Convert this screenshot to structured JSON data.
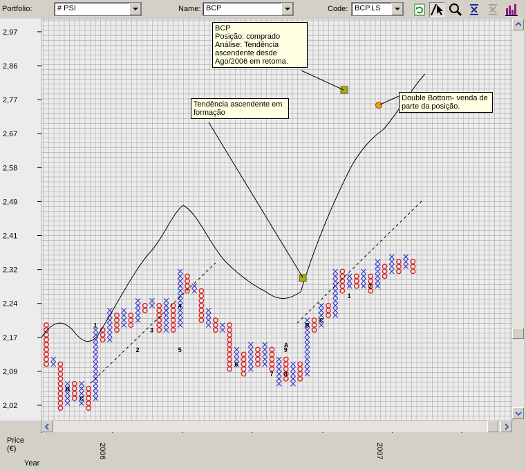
{
  "toolbar": {
    "portfolio_label": "Portfolio:",
    "portfolio_value": "# PSI",
    "name_label": "Name:",
    "name_value": "BCP",
    "code_label": "Code:",
    "code_value": "BCP.LS",
    "buttons": [
      "refresh-icon",
      "draw-line-icon",
      "zoom-icon",
      "trendline-icon",
      "objective-icon",
      "volume-bars-icon"
    ]
  },
  "axis": {
    "price_label": "Price\n(€)",
    "year_label": "Year",
    "year_2006": "2006",
    "year_2007": "2007"
  },
  "notes": {
    "n1": "BCP\nPosição: comprado\nAnálise: Tendência ascendente desde Ago/2006 em retoma.",
    "n2": "Tendência ascendente em formação",
    "n3": "Double Bottom- venda de parte da posição."
  },
  "chart_data": {
    "type": "point-and-figure",
    "y_ticks": [
      2.02,
      2.09,
      2.17,
      2.24,
      2.32,
      2.41,
      2.49,
      2.58,
      2.67,
      2.77,
      2.86,
      2.97
    ],
    "x_ticks": [
      "2006",
      "2007"
    ],
    "colors": {
      "x": "#3030d0",
      "o": "#e02020",
      "label": "#000000",
      "grid": "#9a9a9a",
      "bg": "#ececec"
    },
    "month_markers": [
      {
        "col": 7,
        "row": 16,
        "text": "1"
      },
      {
        "col": 13,
        "row": 11,
        "text": "2"
      },
      {
        "col": 15,
        "row": 15,
        "text": "3"
      },
      {
        "col": 19,
        "row": 20,
        "text": "4"
      },
      {
        "col": 19,
        "row": 11,
        "text": "5"
      },
      {
        "col": 27,
        "row": 8,
        "text": "6"
      },
      {
        "col": 32,
        "row": 6,
        "text": "7"
      },
      {
        "col": 34,
        "row": 6,
        "text": "8"
      },
      {
        "col": 34,
        "row": 11,
        "text": "9"
      },
      {
        "col": 34,
        "row": 12,
        "text": "A"
      },
      {
        "col": 37,
        "row": 16,
        "text": "B"
      },
      {
        "col": 39,
        "row": 17,
        "text": "C"
      },
      {
        "col": 3,
        "row": 3,
        "text": "B"
      },
      {
        "col": 5,
        "row": 1,
        "text": "C"
      },
      {
        "col": 43,
        "row": 22,
        "text": "1"
      },
      {
        "col": 46,
        "row": 24,
        "text": "2"
      }
    ],
    "columns": [
      {
        "t": "O",
        "lo": 8,
        "hi": 16
      },
      {
        "t": "X",
        "lo": 8,
        "hi": 9
      },
      {
        "t": "O",
        "lo": -1,
        "hi": 8
      },
      {
        "t": "X",
        "lo": 0,
        "hi": 4
      },
      {
        "t": "O",
        "lo": 1,
        "hi": 4
      },
      {
        "t": "X",
        "lo": 0,
        "hi": 4
      },
      {
        "t": "O",
        "lo": -1,
        "hi": 3
      },
      {
        "t": "X",
        "lo": 1,
        "hi": 15
      },
      {
        "t": "O",
        "lo": 13,
        "hi": 15
      },
      {
        "t": "X",
        "lo": 13,
        "hi": 19
      },
      {
        "t": "O",
        "lo": 15,
        "hi": 18
      },
      {
        "t": "X",
        "lo": 16,
        "hi": 19
      },
      {
        "t": "O",
        "lo": 16,
        "hi": 18
      },
      {
        "t": "X",
        "lo": 17,
        "hi": 21
      },
      {
        "t": "O",
        "lo": 19,
        "hi": 20
      },
      {
        "t": "X",
        "lo": 20,
        "hi": 21
      },
      {
        "t": "O",
        "lo": 15,
        "hi": 20
      },
      {
        "t": "X",
        "lo": 15,
        "hi": 21
      },
      {
        "t": "O",
        "lo": 15,
        "hi": 20
      },
      {
        "t": "X",
        "lo": 16,
        "hi": 27
      },
      {
        "t": "O",
        "lo": 23,
        "hi": 26
      },
      {
        "t": "X",
        "lo": 23,
        "hi": 24
      },
      {
        "t": "O",
        "lo": 17,
        "hi": 23
      },
      {
        "t": "X",
        "lo": 16,
        "hi": 19
      },
      {
        "t": "O",
        "lo": 15,
        "hi": 17
      },
      {
        "t": "X",
        "lo": 15,
        "hi": 16
      },
      {
        "t": "O",
        "lo": 7,
        "hi": 16
      },
      {
        "t": "X",
        "lo": 8,
        "hi": 11
      },
      {
        "t": "O",
        "lo": 6,
        "hi": 10
      },
      {
        "t": "X",
        "lo": 7,
        "hi": 12
      },
      {
        "t": "O",
        "lo": 8,
        "hi": 11
      },
      {
        "t": "X",
        "lo": 8,
        "hi": 12
      },
      {
        "t": "O",
        "lo": 7,
        "hi": 11
      },
      {
        "t": "X",
        "lo": 4,
        "hi": 9
      },
      {
        "t": "O",
        "lo": 5,
        "hi": 9
      },
      {
        "t": "X",
        "lo": 4,
        "hi": 8
      },
      {
        "t": "O",
        "lo": 5,
        "hi": 8
      },
      {
        "t": "X",
        "lo": 6,
        "hi": 17
      },
      {
        "t": "O",
        "lo": 15,
        "hi": 17
      },
      {
        "t": "X",
        "lo": 16,
        "hi": 20
      },
      {
        "t": "O",
        "lo": 18,
        "hi": 20
      },
      {
        "t": "X",
        "lo": 18,
        "hi": 27
      },
      {
        "t": "O",
        "lo": 23,
        "hi": 27
      },
      {
        "t": "X",
        "lo": 24,
        "hi": 26
      },
      {
        "t": "O",
        "lo": 24,
        "hi": 26
      },
      {
        "t": "X",
        "lo": 24,
        "hi": 27
      },
      {
        "t": "O",
        "lo": 23,
        "hi": 26
      },
      {
        "t": "X",
        "lo": 24,
        "hi": 29
      },
      {
        "t": "O",
        "lo": 26,
        "hi": 28
      },
      {
        "t": "X",
        "lo": 27,
        "hi": 30
      },
      {
        "t": "O",
        "lo": 27,
        "hi": 29
      },
      {
        "t": "X",
        "lo": 28,
        "hi": 30
      },
      {
        "t": "O",
        "lo": 27,
        "hi": 29
      }
    ]
  }
}
